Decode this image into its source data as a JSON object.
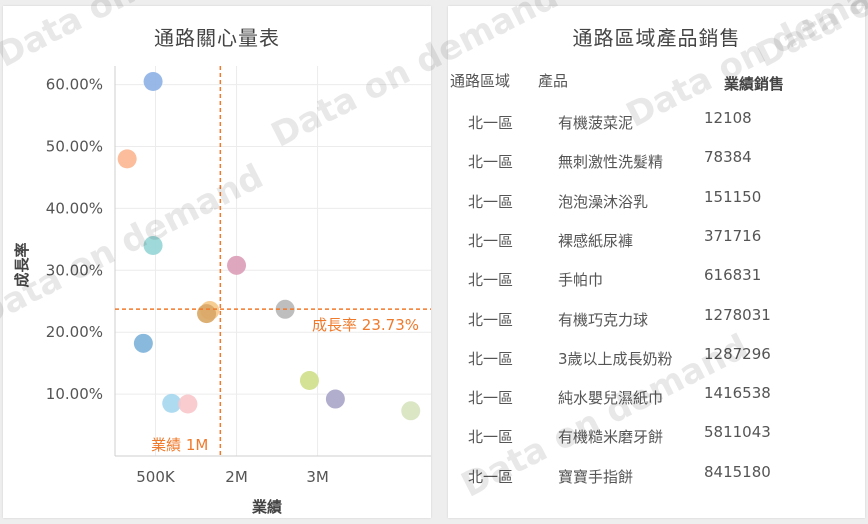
{
  "watermark_text": "Data on demand",
  "left_title": "通路關心量表",
  "right_title": "通路區域產品銷售",
  "chart_data": {
    "type": "scatter",
    "title": "通路關心量表",
    "xlabel": "業績",
    "ylabel": "成長率",
    "xlim": [
      0,
      3900000
    ],
    "ylim": [
      0,
      0.63
    ],
    "x_ticks": [
      500000,
      1500000,
      2500000
    ],
    "x_tick_labels": [
      "500K",
      "2M",
      "3M"
    ],
    "y_ticks": [
      0.1,
      0.2,
      0.3,
      0.4,
      0.5,
      0.6
    ],
    "y_tick_labels": [
      "10.00%",
      "20.00%",
      "30.00%",
      "40.00%",
      "50.00%",
      "60.00%"
    ],
    "grid": true,
    "ref_x": 1300000,
    "ref_x_label": "業績 1M",
    "ref_y": 0.2373,
    "ref_y_label": "成長率 23.73%",
    "ref_color": "#f07a2c",
    "points": [
      {
        "x": 470000,
        "y": 0.605,
        "color": "#8fb3e6"
      },
      {
        "x": 150000,
        "y": 0.48,
        "color": "#fbb793"
      },
      {
        "x": 470000,
        "y": 0.34,
        "color": "#98d6d6"
      },
      {
        "x": 1500000,
        "y": 0.308,
        "color": "#dc9fb8"
      },
      {
        "x": 1170000,
        "y": 0.235,
        "color": "#f5c98a"
      },
      {
        "x": 1130000,
        "y": 0.23,
        "color": "#d9a867"
      },
      {
        "x": 2100000,
        "y": 0.237,
        "color": "#b9b9b9"
      },
      {
        "x": 350000,
        "y": 0.182,
        "color": "#7fb3d9"
      },
      {
        "x": 2400000,
        "y": 0.122,
        "color": "#cfe08b"
      },
      {
        "x": 2720000,
        "y": 0.092,
        "color": "#aaa7c9"
      },
      {
        "x": 700000,
        "y": 0.085,
        "color": "#a8d8f0"
      },
      {
        "x": 900000,
        "y": 0.084,
        "color": "#f8c8cc"
      },
      {
        "x": 3650000,
        "y": 0.073,
        "color": "#d8e4c0"
      }
    ]
  },
  "table": {
    "headers": [
      "通路區域",
      "產品",
      "業績銷售"
    ],
    "rows": [
      [
        "北一區",
        "有機菠菜泥",
        "12108"
      ],
      [
        "北一區",
        "無刺激性洗髮精",
        "78384"
      ],
      [
        "北一區",
        "泡泡澡沐浴乳",
        "151150"
      ],
      [
        "北一區",
        "裸感紙尿褲",
        "371716"
      ],
      [
        "北一區",
        "手帕巾",
        "616831"
      ],
      [
        "北一區",
        "有機巧克力球",
        "1278031"
      ],
      [
        "北一區",
        "3歲以上成長奶粉",
        "1287296"
      ],
      [
        "北一區",
        "純水嬰兒濕紙巾",
        "1416538"
      ],
      [
        "北一區",
        "有機糙米磨牙餅",
        "5811043"
      ],
      [
        "北一區",
        "寶寶手指餅",
        "8415180"
      ]
    ]
  }
}
